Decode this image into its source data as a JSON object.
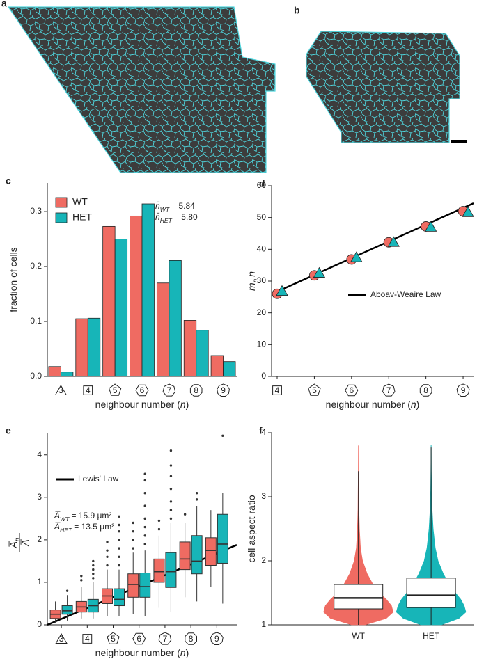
{
  "images": [
    {
      "label": "a"
    },
    {
      "label": "b"
    }
  ],
  "chart_data": [
    {
      "label": "c",
      "type": "bar",
      "y_label": [
        {
          "text": "fraction of cells"
        }
      ],
      "x_label": [
        {
          "text": "neighbour number ("
        },
        {
          "text": "n",
          "italic": true
        },
        {
          "text": ")"
        }
      ],
      "categories": [
        "3",
        "4",
        "5",
        "6",
        "7",
        "8",
        "9"
      ],
      "series": [
        {
          "name": "WT",
          "color": "#ef6b62",
          "values": [
            0.018,
            0.105,
            0.273,
            0.292,
            0.17,
            0.102,
            0.038
          ]
        },
        {
          "name": "HET",
          "color": "#17b5b8",
          "values": [
            0.008,
            0.106,
            0.25,
            0.314,
            0.211,
            0.084,
            0.027
          ]
        }
      ],
      "ylim": [
        0,
        0.352
      ],
      "yticks": [
        {
          "value": 0,
          "label": "0.0"
        },
        {
          "value": 0.1,
          "label": "0.1"
        },
        {
          "value": 0.2,
          "label": "0.2"
        },
        {
          "value": 0.3,
          "label": "0.3"
        }
      ],
      "legend": "upper left",
      "annotations": [
        [
          {
            "text": "n̄",
            "italic": true
          },
          {
            "text": "WT",
            "italic": true,
            "sub": true
          },
          {
            "text": "= 5.84"
          }
        ],
        [
          {
            "text": "n̄",
            "italic": true
          },
          {
            "text": "HET",
            "italic": true,
            "sub": true
          },
          {
            "text": "= 5.80"
          }
        ]
      ]
    },
    {
      "label": "d",
      "type": "scatter",
      "y_label": [
        {
          "text": "m",
          "italic": true
        },
        {
          "text": "n",
          "italic": true,
          "sub": true
        },
        {
          "text": "n",
          "italic": true
        }
      ],
      "x_label": [
        {
          "text": "neighbour number ("
        },
        {
          "text": "n",
          "italic": true
        },
        {
          "text": ")"
        }
      ],
      "x": [
        4,
        5,
        6,
        7,
        8,
        9
      ],
      "series": [
        {
          "color": "#ef6b62",
          "marker": "circle",
          "values": [
            26,
            31.8,
            36.8,
            42.2,
            47.2,
            52
          ]
        },
        {
          "color": "#17b5b8",
          "marker": "triangle",
          "values": [
            26.8,
            32.5,
            37.4,
            42.2,
            47,
            51.6
          ]
        }
      ],
      "fit": {
        "name": "Aboav-Weaire Law",
        "color": "#000000",
        "x": [
          4,
          9.28
        ],
        "values": [
          26.7,
          54.5
        ]
      },
      "xlim": [
        3.85,
        9.28
      ],
      "xticks": [
        4,
        5,
        6,
        7,
        8,
        9
      ],
      "ylim": [
        0,
        60
      ],
      "yticks": [
        0,
        10,
        20,
        30,
        40,
        50,
        60
      ],
      "legend": "right"
    },
    {
      "label": "e",
      "type": "box",
      "y_label": {
        "numerator": [
          {
            "text": "A̅",
            "italic": true
          },
          {
            "text": "n",
            "italic": true,
            "sub": true
          }
        ],
        "denominator": [
          {
            "text": "A̅",
            "italic": true
          }
        ]
      },
      "x_label": [
        {
          "text": "neighbour number ("
        },
        {
          "text": "n",
          "italic": true
        },
        {
          "text": ")"
        }
      ],
      "xlim": [
        2.46,
        9.77
      ],
      "xticks": [
        3,
        4,
        5,
        6,
        7,
        8,
        9
      ],
      "ylim": [
        0,
        4.52
      ],
      "yticks": [
        0,
        1,
        2,
        3,
        4
      ],
      "series": [
        {
          "name": "WT",
          "color": "#ef6b62",
          "boxes": [
            {
              "whislo": 0.05,
              "q1": 0.15,
              "med": 0.25,
              "q3": 0.35,
              "whishi": 0.55,
              "fliers": []
            },
            {
              "whislo": 0.15,
              "q1": 0.3,
              "med": 0.42,
              "q3": 0.55,
              "whishi": 0.9,
              "fliers": [
                1.05,
                1.15
              ]
            },
            {
              "whislo": 0.2,
              "q1": 0.5,
              "med": 0.68,
              "q3": 0.85,
              "whishi": 1.3,
              "fliers": [
                1.4,
                1.6,
                1.75,
                1.95
              ]
            },
            {
              "whislo": 0.25,
              "q1": 0.65,
              "med": 0.95,
              "q3": 1.2,
              "whishi": 1.7,
              "fliers": [
                1.8,
                2.0,
                2.2,
                2.4
              ]
            },
            {
              "whislo": 0.4,
              "q1": 1.0,
              "med": 1.25,
              "q3": 1.55,
              "whishi": 2.1,
              "fliers": [
                2.25,
                2.45
              ]
            },
            {
              "whislo": 0.65,
              "q1": 1.3,
              "med": 1.55,
              "q3": 1.95,
              "whishi": 2.4,
              "fliers": [
                2.6
              ]
            },
            {
              "whislo": 0.9,
              "q1": 1.4,
              "med": 1.75,
              "q3": 2.05,
              "whishi": 2.7,
              "fliers": []
            }
          ]
        },
        {
          "name": "HET",
          "color": "#17b5b8",
          "boxes": [
            {
              "whislo": 0.1,
              "q1": 0.25,
              "med": 0.33,
              "q3": 0.45,
              "whishi": 0.7,
              "fliers": [
                0.8
              ]
            },
            {
              "whislo": 0.15,
              "q1": 0.3,
              "med": 0.45,
              "q3": 0.6,
              "whishi": 1.0,
              "fliers": [
                1.1,
                1.2,
                1.3,
                1.4,
                1.5
              ]
            },
            {
              "whislo": 0.2,
              "q1": 0.45,
              "med": 0.6,
              "q3": 0.85,
              "whishi": 1.3,
              "fliers": [
                1.4,
                1.6,
                1.8,
                2.0,
                2.2,
                2.35,
                2.55
              ]
            },
            {
              "whislo": 0.2,
              "q1": 0.65,
              "med": 0.9,
              "q3": 1.22,
              "whishi": 1.75,
              "fliers": [
                1.9,
                2.1,
                2.3,
                2.5,
                2.8,
                3.1,
                3.4,
                3.55
              ]
            },
            {
              "whislo": 0.3,
              "q1": 0.88,
              "med": 1.25,
              "q3": 1.7,
              "whishi": 2.4,
              "fliers": [
                2.5,
                2.7,
                2.9,
                3.2,
                3.5,
                3.75,
                4.1
              ]
            },
            {
              "whislo": 0.55,
              "q1": 1.2,
              "med": 1.5,
              "q3": 2.1,
              "whishi": 2.8,
              "fliers": [
                2.95,
                3.1
              ]
            },
            {
              "whislo": 0.5,
              "q1": 1.45,
              "med": 1.9,
              "q3": 2.6,
              "whishi": 3.1,
              "fliers": [
                4.45
              ]
            }
          ]
        }
      ],
      "fit": {
        "name": "Lewis' Law",
        "color": "#000000",
        "x": [
          2.46,
          9.77
        ],
        "values": [
          0,
          1.88
        ]
      },
      "legend": "upper left",
      "annotations": [
        [
          {
            "text": "A̅",
            "italic": true
          },
          {
            "text": "WT",
            "italic": true,
            "sub": true
          },
          {
            "text": "= 15.9 μm²"
          }
        ],
        [
          {
            "text": "A̅",
            "italic": true
          },
          {
            "text": "HET",
            "italic": true,
            "sub": true
          },
          {
            "text": "= 13.5 μm²"
          }
        ]
      ]
    },
    {
      "label": "f",
      "type": "violin",
      "y_label": [
        {
          "text": "cell aspect ratio"
        }
      ],
      "categories": [
        "WT",
        "HET"
      ],
      "ylim": [
        1,
        4
      ],
      "yticks": [
        1,
        2,
        3,
        4
      ],
      "density_y": [
        1.0,
        1.1,
        1.2,
        1.3,
        1.4,
        1.5,
        1.6,
        1.8,
        2.0,
        2.2,
        2.5,
        2.8,
        3.1,
        3.4,
        3.8
      ],
      "violins": [
        {
          "color": "#ef6b62",
          "density": [
            0.2,
            0.8,
            1.0,
            0.95,
            0.8,
            0.6,
            0.45,
            0.25,
            0.12,
            0.06,
            0.03,
            0.015,
            0.01,
            0.005,
            0
          ],
          "box": {
            "whislo": 1.0,
            "q1": 1.25,
            "med": 1.42,
            "q3": 1.63,
            "whishi": 3.4
          }
        },
        {
          "color": "#17b5b8",
          "density": [
            0.3,
            0.8,
            1.0,
            0.95,
            0.85,
            0.7,
            0.55,
            0.35,
            0.2,
            0.12,
            0.06,
            0.03,
            0.015,
            0.008,
            0.003
          ],
          "box": {
            "whislo": 1.0,
            "q1": 1.27,
            "med": 1.46,
            "q3": 1.73,
            "whishi": 3.77
          }
        }
      ]
    }
  ]
}
